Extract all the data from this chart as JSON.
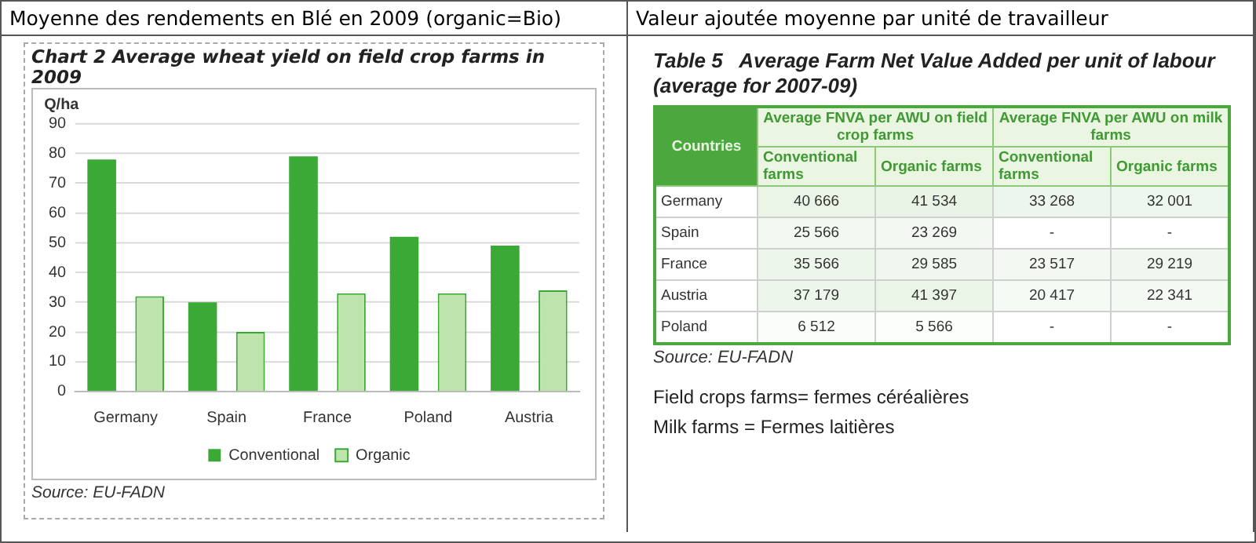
{
  "chart_data": [
    {
      "type": "bar",
      "title": "Moyenne des rendements en Blé en 2009 (organic=Bio)",
      "subtitle": "Chart 2   Average wheat yield on field crop farms in 2009",
      "ylabel": "Q/ha",
      "categories": [
        "Germany",
        "Spain",
        "France",
        "Poland",
        "Austria"
      ],
      "series": [
        {
          "name": "Conventional",
          "color": "#3aa935",
          "values": [
            78,
            30,
            79,
            52,
            49
          ]
        },
        {
          "name": "Organic",
          "color": "#bfe3ad",
          "values": [
            32,
            20,
            33,
            33,
            34
          ]
        }
      ],
      "ylim": [
        0,
        90
      ],
      "yticks": [
        0,
        10,
        20,
        30,
        40,
        50,
        60,
        70,
        80,
        90
      ],
      "grid": "y",
      "legend": "bottom",
      "annotations": [
        "Source: EU-FADN"
      ]
    },
    {
      "type": "heatmap",
      "title": "Valeur ajoutée moyenne par unité de travailleur",
      "subtitle": "Table 5   Average Farm Net Value Added per unit of labour (average for 2007-09)",
      "categories": [
        "Conventional farms",
        "Organic farms",
        "Conventional farms",
        "Organic farms"
      ],
      "y_categories": [
        "Germany",
        "Spain",
        "France",
        "Austria",
        "Poland"
      ],
      "cells": [
        [
          40666,
          41534,
          33268,
          32001
        ],
        [
          25566,
          23269,
          null,
          null
        ],
        [
          35566,
          29585,
          23517,
          29219
        ],
        [
          37179,
          41397,
          20417,
          22341
        ],
        [
          6512,
          5566,
          null,
          null
        ]
      ],
      "cell_labels": [
        [
          "40 666",
          "41 534",
          "33 268",
          "32 001"
        ],
        [
          "25 566",
          "23 269",
          "-",
          "-"
        ],
        [
          "35 566",
          "29 585",
          "23 517",
          "29 219"
        ],
        [
          "37 179",
          "41 397",
          "20 417",
          "22 341"
        ],
        [
          "6 512",
          "5 566",
          "-",
          "-"
        ]
      ],
      "annotations": [
        "Countries",
        "Average FNVA per AWU on field crop farms",
        "Average FNVA per AWU on milk farms",
        "Source: EU-FADN",
        "Field crops farms= fermes céréalières",
        "Milk farms = Fermes laitières"
      ]
    }
  ]
}
